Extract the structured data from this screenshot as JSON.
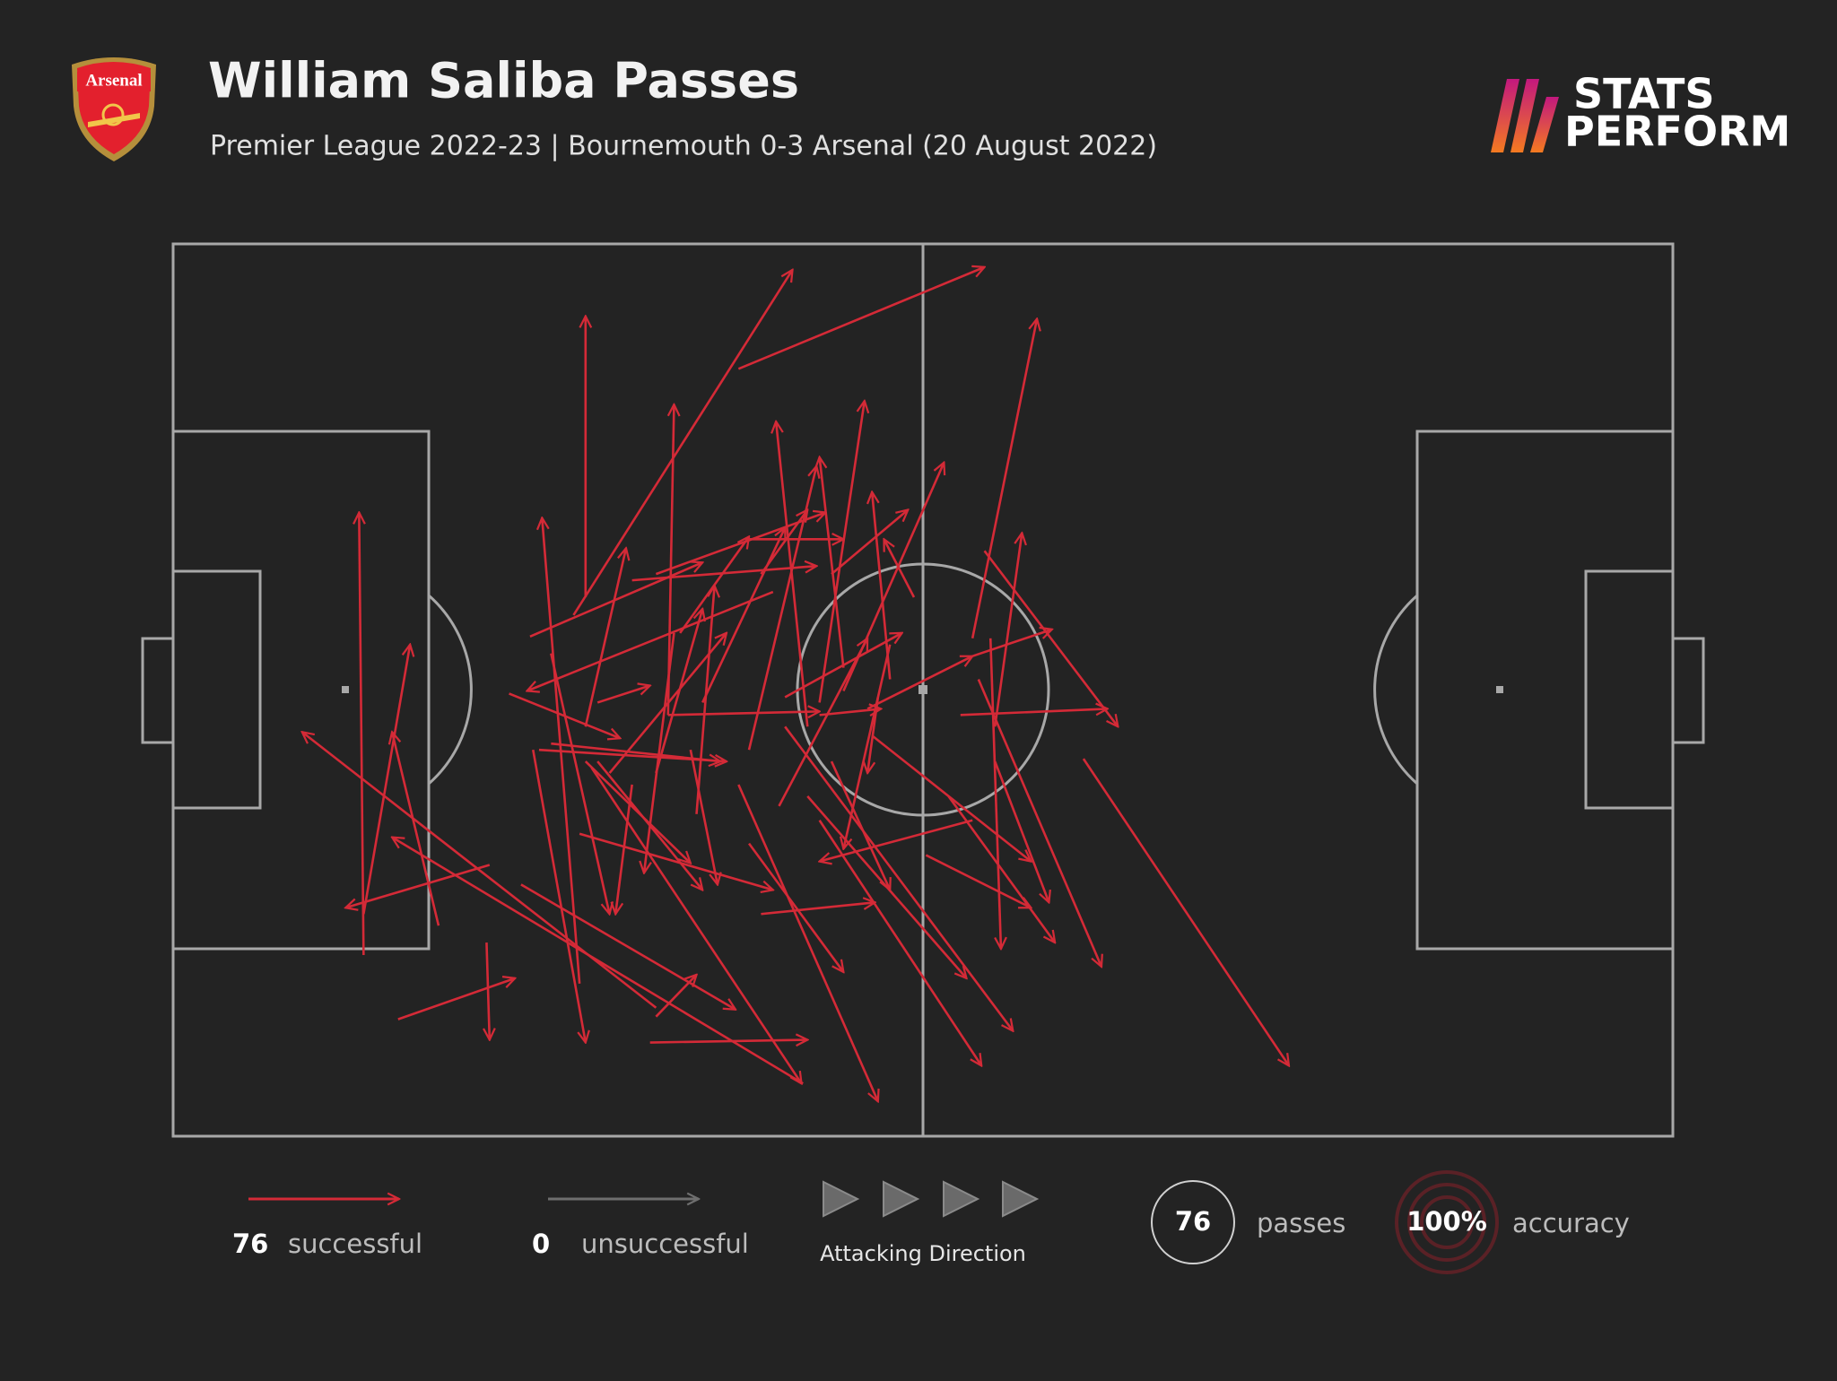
{
  "header": {
    "club": "Arsenal",
    "brand_line1": "STATS",
    "brand_line2": "PERFORM"
  },
  "chart_data": {
    "type": "pass_map",
    "title": "William Saliba Passes",
    "subtitle": "Premier League 2022-23 | Bournemouth 0-3 Arsenal (20 August 2022)",
    "xlim": [
      0,
      100
    ],
    "ylim": [
      0,
      100
    ],
    "series": [
      {
        "name": "successful",
        "color": "#d42a37",
        "count": 76,
        "passes": [
          [
            37.7,
            14.0,
            54.1,
            2.6
          ],
          [
            26.7,
            41.6,
            41.3,
            2.9
          ],
          [
            27.5,
            39.6,
            27.5,
            8.1
          ],
          [
            53.3,
            44.2,
            57.6,
            8.4
          ],
          [
            33.0,
            52.8,
            33.4,
            18.0
          ],
          [
            43.1,
            51.4,
            46.1,
            17.6
          ],
          [
            42.3,
            54.1,
            40.2,
            19.9
          ],
          [
            12.7,
            79.7,
            12.4,
            30.1
          ],
          [
            27.1,
            82.9,
            24.6,
            30.7
          ],
          [
            44.7,
            50.1,
            51.4,
            24.5
          ],
          [
            38.4,
            56.7,
            42.9,
            24.9
          ],
          [
            54.8,
            54.1,
            56.6,
            32.4
          ],
          [
            23.8,
            44.0,
            35.3,
            35.7
          ],
          [
            32.2,
            37.0,
            43.5,
            30.1
          ],
          [
            27.5,
            54.1,
            30.2,
            34.1
          ],
          [
            47.8,
            48.8,
            46.6,
            27.8
          ],
          [
            49.4,
            39.6,
            47.4,
            33.1
          ],
          [
            43.9,
            37.0,
            49.0,
            29.8
          ],
          [
            38.4,
            33.1,
            44.7,
            33.1
          ],
          [
            33.8,
            43.6,
            38.4,
            32.8
          ],
          [
            35.3,
            51.4,
            40.8,
            31.8
          ],
          [
            30.6,
            37.7,
            42.9,
            36.1
          ],
          [
            22.4,
            50.4,
            29.8,
            55.4
          ],
          [
            32.2,
            59.3,
            35.3,
            40.9
          ],
          [
            40.0,
            39.0,
            23.6,
            50.1
          ],
          [
            24.4,
            56.7,
            36.9,
            58.0
          ],
          [
            33.0,
            52.8,
            43.1,
            52.4
          ],
          [
            46.3,
            52.1,
            53.3,
            46.2
          ],
          [
            53.3,
            46.2,
            58.6,
            43.2
          ],
          [
            54.1,
            34.4,
            63.0,
            54.1
          ],
          [
            52.5,
            52.8,
            62.3,
            52.1
          ],
          [
            60.7,
            57.7,
            74.4,
            92.1
          ],
          [
            53.7,
            48.8,
            61.9,
            81.0
          ],
          [
            47.8,
            44.9,
            44.7,
            67.8
          ],
          [
            53.3,
            64.6,
            43.1,
            69.2
          ],
          [
            46.6,
            55.1,
            57.2,
            69.2
          ],
          [
            43.9,
            58.0,
            47.8,
            72.4
          ],
          [
            50.2,
            68.5,
            57.2,
            74.4
          ],
          [
            51.7,
            61.9,
            58.8,
            78.3
          ],
          [
            54.8,
            58.0,
            58.4,
            73.8
          ],
          [
            42.3,
            61.9,
            52.9,
            82.3
          ],
          [
            40.8,
            54.1,
            56.0,
            88.2
          ],
          [
            43.1,
            64.6,
            53.9,
            92.1
          ],
          [
            37.7,
            60.6,
            47.0,
            96.1
          ],
          [
            38.4,
            67.2,
            44.7,
            81.6
          ],
          [
            39.2,
            75.1,
            46.8,
            73.8
          ],
          [
            31.8,
            89.5,
            42.3,
            89.2
          ],
          [
            27.9,
            58.7,
            41.9,
            94.1
          ],
          [
            23.2,
            71.8,
            37.5,
            85.8
          ],
          [
            15.0,
            86.9,
            22.8,
            82.3
          ],
          [
            20.9,
            78.3,
            21.1,
            89.2
          ],
          [
            42.0,
            94.1,
            14.6,
            66.5
          ],
          [
            32.2,
            85.6,
            8.6,
            54.7
          ],
          [
            17.7,
            76.4,
            14.6,
            54.7
          ],
          [
            12.7,
            75.1,
            15.8,
            44.9
          ],
          [
            21.1,
            69.6,
            11.5,
            74.4
          ],
          [
            24.0,
            56.7,
            27.5,
            89.5
          ],
          [
            25.2,
            45.9,
            29.1,
            75.1
          ],
          [
            27.5,
            58.0,
            34.5,
            69.4
          ],
          [
            30.6,
            60.6,
            29.5,
            75.1
          ],
          [
            33.4,
            43.6,
            31.4,
            70.5
          ],
          [
            27.1,
            66.1,
            40.0,
            72.4
          ],
          [
            28.3,
            58.0,
            35.3,
            72.4
          ],
          [
            34.5,
            56.7,
            36.3,
            71.8
          ],
          [
            25.2,
            56.0,
            36.5,
            58.0
          ],
          [
            32.2,
            86.6,
            34.9,
            81.9
          ],
          [
            28.3,
            51.4,
            31.8,
            49.5
          ],
          [
            29.1,
            59.3,
            36.9,
            43.6
          ],
          [
            34.9,
            63.9,
            36.1,
            38.3
          ],
          [
            40.8,
            50.8,
            48.6,
            43.6
          ],
          [
            40.4,
            63.0,
            46.3,
            44.2
          ],
          [
            47.0,
            50.8,
            46.3,
            59.3
          ],
          [
            54.5,
            44.2,
            55.2,
            79.0
          ],
          [
            43.1,
            52.8,
            47.2,
            52.1
          ],
          [
            44.7,
            47.5,
            43.1,
            23.9
          ],
          [
            39.2,
            37.0,
            42.3,
            29.8
          ]
        ]
      },
      {
        "name": "unsuccessful",
        "color": "#6e6e6e",
        "count": 0
      }
    ],
    "direction_label": "Attacking Direction",
    "total_passes": 76,
    "passes_label": "passes",
    "accuracy": {
      "value": 100,
      "label": "100%"
    },
    "accuracy_label": "accuracy"
  }
}
